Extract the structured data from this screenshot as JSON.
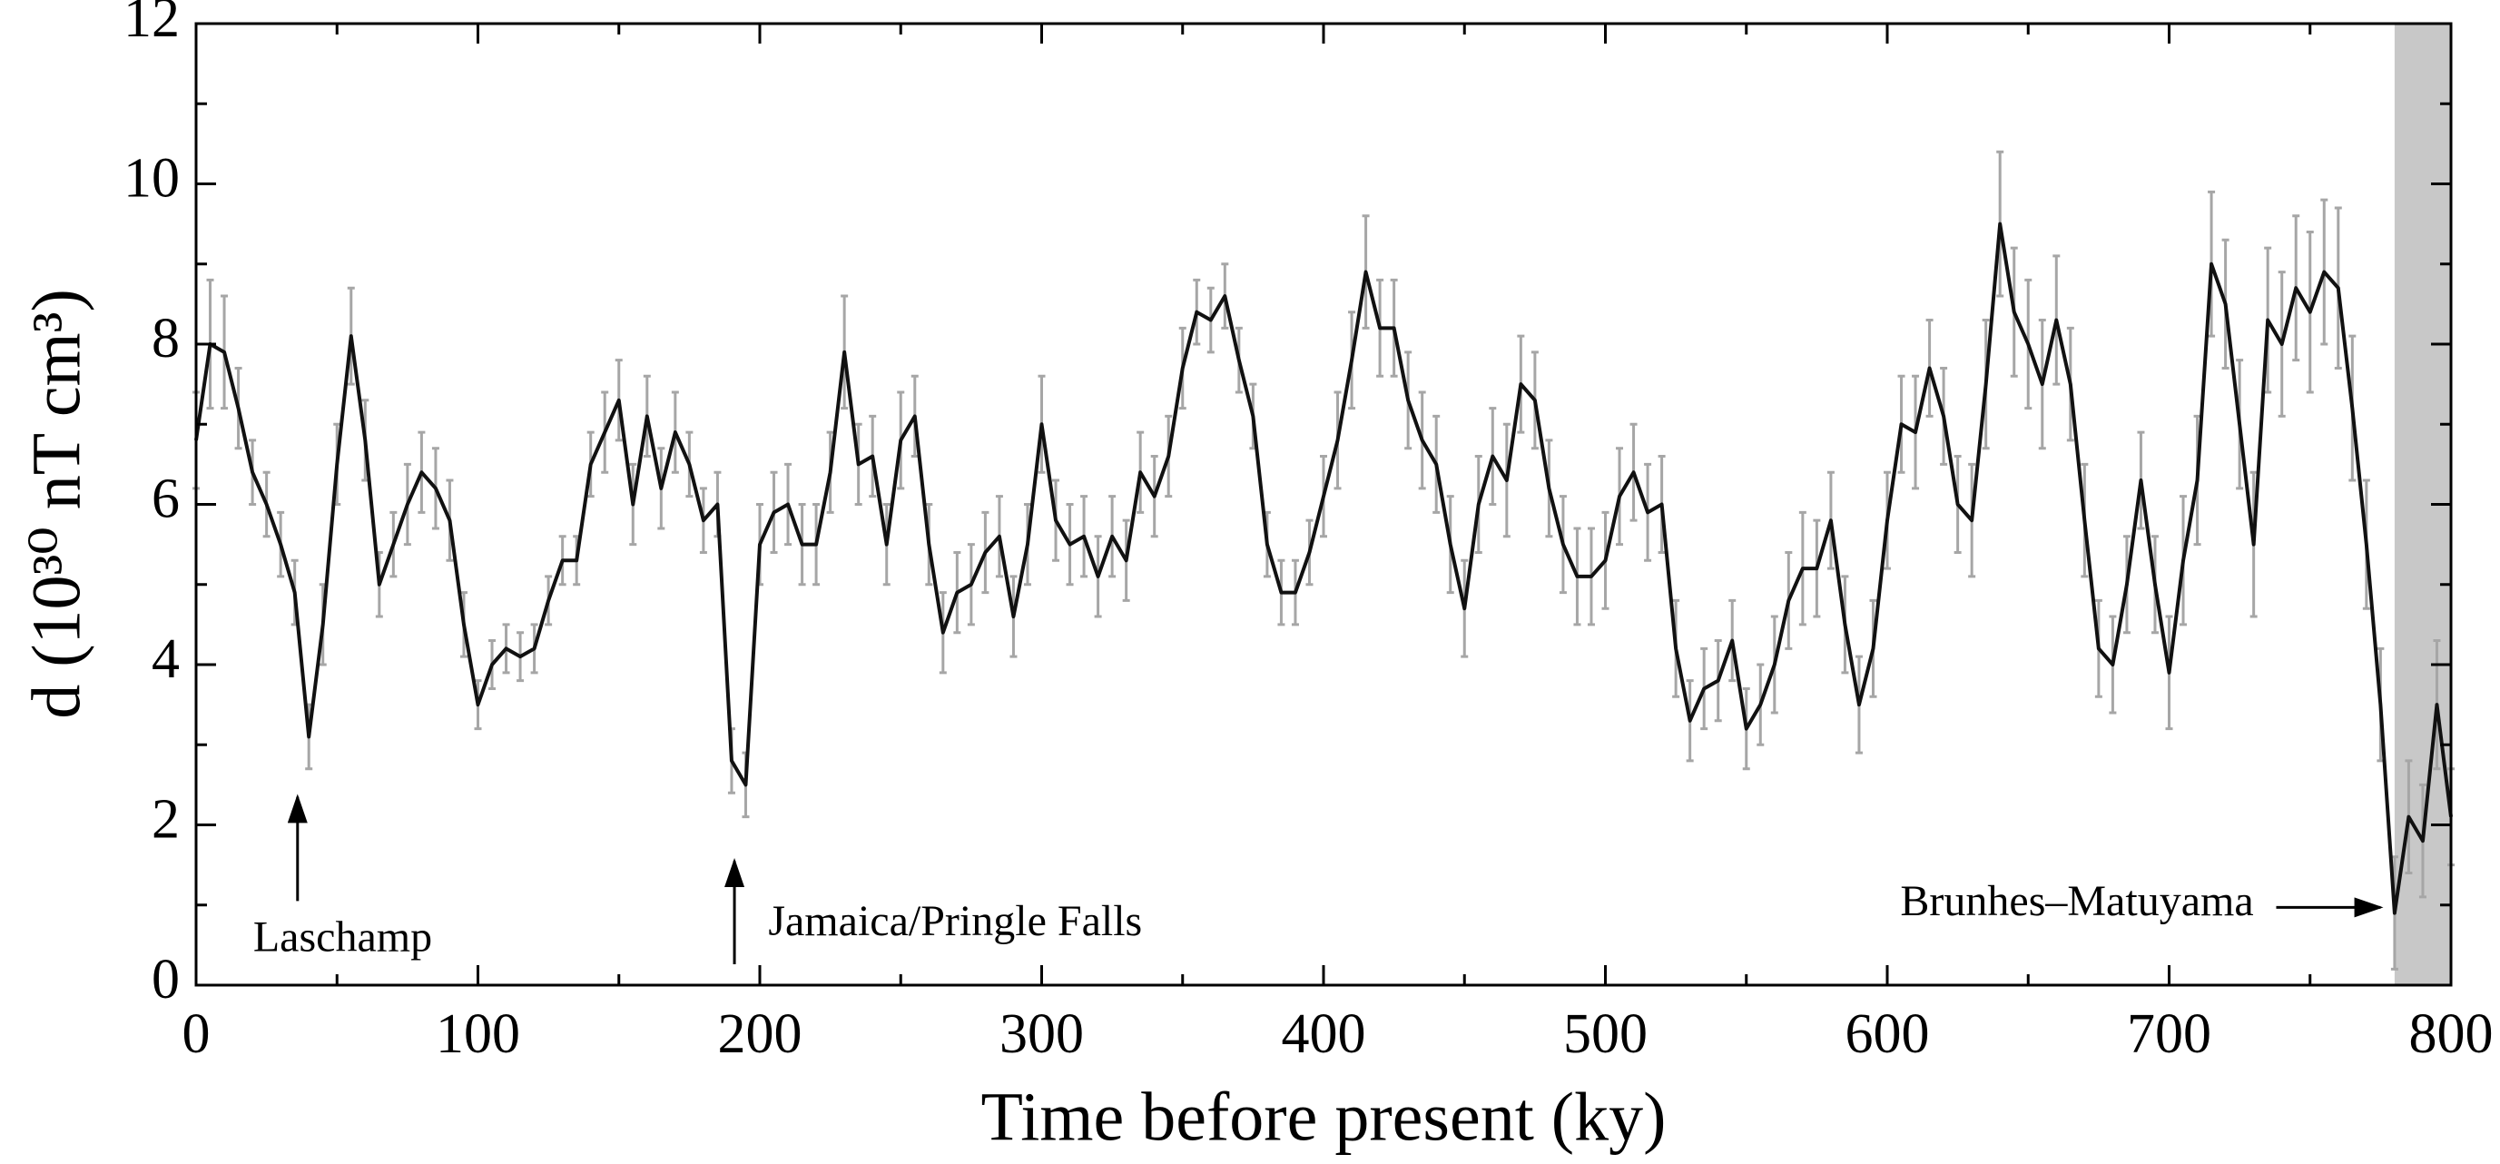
{
  "chart_data": {
    "type": "line",
    "xlabel": "Time before present (ky)",
    "ylabel": "d (10³⁰ nT cm³)",
    "xlim": [
      0,
      800
    ],
    "ylim": [
      0,
      12
    ],
    "xticks": [
      0,
      100,
      200,
      300,
      400,
      500,
      600,
      700,
      800
    ],
    "yticks": [
      0,
      2,
      4,
      6,
      8,
      10,
      12
    ],
    "xminorticks": [
      50,
      150,
      250,
      350,
      450,
      550,
      650,
      750
    ],
    "yminorticks": [
      1,
      3,
      5,
      7,
      9,
      11
    ],
    "shade_xlim": [
      780,
      800
    ],
    "shade_color": "#c8c8c8",
    "x": [
      0,
      5,
      10,
      15,
      20,
      25,
      30,
      35,
      40,
      45,
      50,
      55,
      60,
      65,
      70,
      75,
      80,
      85,
      90,
      95,
      100,
      105,
      110,
      115,
      120,
      125,
      130,
      135,
      140,
      145,
      150,
      155,
      160,
      165,
      170,
      175,
      180,
      185,
      190,
      195,
      200,
      205,
      210,
      215,
      220,
      225,
      230,
      235,
      240,
      245,
      250,
      255,
      260,
      265,
      270,
      275,
      280,
      285,
      290,
      295,
      300,
      305,
      310,
      315,
      320,
      325,
      330,
      335,
      340,
      345,
      350,
      355,
      360,
      365,
      370,
      375,
      380,
      385,
      390,
      395,
      400,
      405,
      410,
      415,
      420,
      425,
      430,
      435,
      440,
      445,
      450,
      455,
      460,
      465,
      470,
      475,
      480,
      485,
      490,
      495,
      500,
      505,
      510,
      515,
      520,
      525,
      530,
      535,
      540,
      545,
      550,
      555,
      560,
      565,
      570,
      575,
      580,
      585,
      590,
      595,
      600,
      605,
      610,
      615,
      620,
      625,
      630,
      635,
      640,
      645,
      650,
      655,
      660,
      665,
      670,
      675,
      680,
      685,
      690,
      695,
      700,
      705,
      710,
      715,
      720,
      725,
      730,
      735,
      740,
      745,
      750,
      755,
      760,
      765,
      770,
      775,
      780,
      785,
      790,
      795,
      800
    ],
    "series": [
      {
        "color": "#111111",
        "error_color": "#a6a6a6",
        "values": [
          6.8,
          8.0,
          7.9,
          7.2,
          6.4,
          6.0,
          5.5,
          4.9,
          3.1,
          4.5,
          6.5,
          8.1,
          6.8,
          5.0,
          5.5,
          6.0,
          6.4,
          6.2,
          5.8,
          4.5,
          3.5,
          4.0,
          4.2,
          4.1,
          4.2,
          4.8,
          5.3,
          5.3,
          6.5,
          6.9,
          7.3,
          6.0,
          7.1,
          6.2,
          6.9,
          6.5,
          5.8,
          6.0,
          2.8,
          2.5,
          5.5,
          5.9,
          6.0,
          5.5,
          5.5,
          6.4,
          7.9,
          6.5,
          6.6,
          5.5,
          6.8,
          7.1,
          5.5,
          4.4,
          4.9,
          5.0,
          5.4,
          5.6,
          4.6,
          5.5,
          7.0,
          5.8,
          5.5,
          5.6,
          5.1,
          5.6,
          5.3,
          6.4,
          6.1,
          6.6,
          7.7,
          8.4,
          8.3,
          8.6,
          7.8,
          7.1,
          5.5,
          4.9,
          4.9,
          5.4,
          6.1,
          6.8,
          7.8,
          8.9,
          8.2,
          8.2,
          7.3,
          6.8,
          6.5,
          5.5,
          4.7,
          6.0,
          6.6,
          6.3,
          7.5,
          7.3,
          6.2,
          5.5,
          5.1,
          5.1,
          5.3,
          6.1,
          6.4,
          5.9,
          6.0,
          4.2,
          3.3,
          3.7,
          3.8,
          4.3,
          3.2,
          3.5,
          4.0,
          4.8,
          5.2,
          5.2,
          5.8,
          4.5,
          3.5,
          4.2,
          5.8,
          7.0,
          6.9,
          7.7,
          7.1,
          6.0,
          5.8,
          7.5,
          9.5,
          8.4,
          8.0,
          7.5,
          8.3,
          7.5,
          5.8,
          4.2,
          4.0,
          5.0,
          6.3,
          5.0,
          3.9,
          5.3,
          6.3,
          9.0,
          8.5,
          7.0,
          5.5,
          8.3,
          8.0,
          8.7,
          8.4,
          8.9,
          8.7,
          7.2,
          5.5,
          3.5,
          0.9,
          2.1,
          1.8,
          3.5,
          2.1
        ],
        "errors": [
          0.6,
          0.8,
          0.7,
          0.5,
          0.4,
          0.4,
          0.4,
          0.4,
          0.4,
          0.5,
          0.5,
          0.6,
          0.5,
          0.4,
          0.4,
          0.5,
          0.5,
          0.5,
          0.5,
          0.4,
          0.3,
          0.3,
          0.3,
          0.3,
          0.3,
          0.3,
          0.3,
          0.3,
          0.4,
          0.5,
          0.5,
          0.5,
          0.5,
          0.5,
          0.5,
          0.4,
          0.4,
          0.4,
          0.4,
          0.4,
          0.5,
          0.5,
          0.5,
          0.5,
          0.5,
          0.5,
          0.7,
          0.5,
          0.5,
          0.5,
          0.6,
          0.5,
          0.5,
          0.5,
          0.5,
          0.5,
          0.5,
          0.5,
          0.5,
          0.5,
          0.6,
          0.5,
          0.5,
          0.5,
          0.5,
          0.5,
          0.5,
          0.5,
          0.5,
          0.5,
          0.5,
          0.4,
          0.4,
          0.4,
          0.4,
          0.4,
          0.4,
          0.4,
          0.4,
          0.4,
          0.5,
          0.6,
          0.6,
          0.7,
          0.6,
          0.6,
          0.6,
          0.6,
          0.6,
          0.6,
          0.6,
          0.6,
          0.6,
          0.7,
          0.6,
          0.6,
          0.6,
          0.6,
          0.6,
          0.6,
          0.6,
          0.6,
          0.6,
          0.6,
          0.6,
          0.6,
          0.5,
          0.5,
          0.5,
          0.5,
          0.5,
          0.5,
          0.6,
          0.6,
          0.7,
          0.6,
          0.6,
          0.6,
          0.6,
          0.6,
          0.6,
          0.6,
          0.7,
          0.6,
          0.6,
          0.6,
          0.7,
          0.8,
          0.9,
          0.8,
          0.8,
          0.8,
          0.8,
          0.7,
          0.7,
          0.6,
          0.6,
          0.6,
          0.6,
          0.6,
          0.7,
          0.8,
          0.8,
          0.9,
          0.8,
          0.8,
          0.9,
          0.9,
          0.9,
          0.9,
          1.0,
          0.9,
          1.0,
          0.9,
          0.8,
          0.7,
          0.7,
          0.7,
          0.7,
          0.8,
          0.6
        ]
      }
    ],
    "annotations": [
      {
        "text": "Laschamp",
        "x": 52,
        "y": 0.55,
        "anchor": "middle",
        "arrow_from": [
          36,
          1.05
        ],
        "arrow_to": [
          36,
          2.35
        ]
      },
      {
        "text": "Jamaica/Pringle Falls",
        "x": 203,
        "y": 0.75,
        "anchor": "start",
        "arrow_from": [
          191,
          0.26
        ],
        "arrow_to": [
          191,
          1.55
        ]
      },
      {
        "text": "Brunhes–Matuyama",
        "x": 730,
        "y": 1.0,
        "anchor": "end",
        "arrow_from": [
          738,
          0.97
        ],
        "arrow_to": [
          775,
          0.97
        ]
      }
    ]
  }
}
